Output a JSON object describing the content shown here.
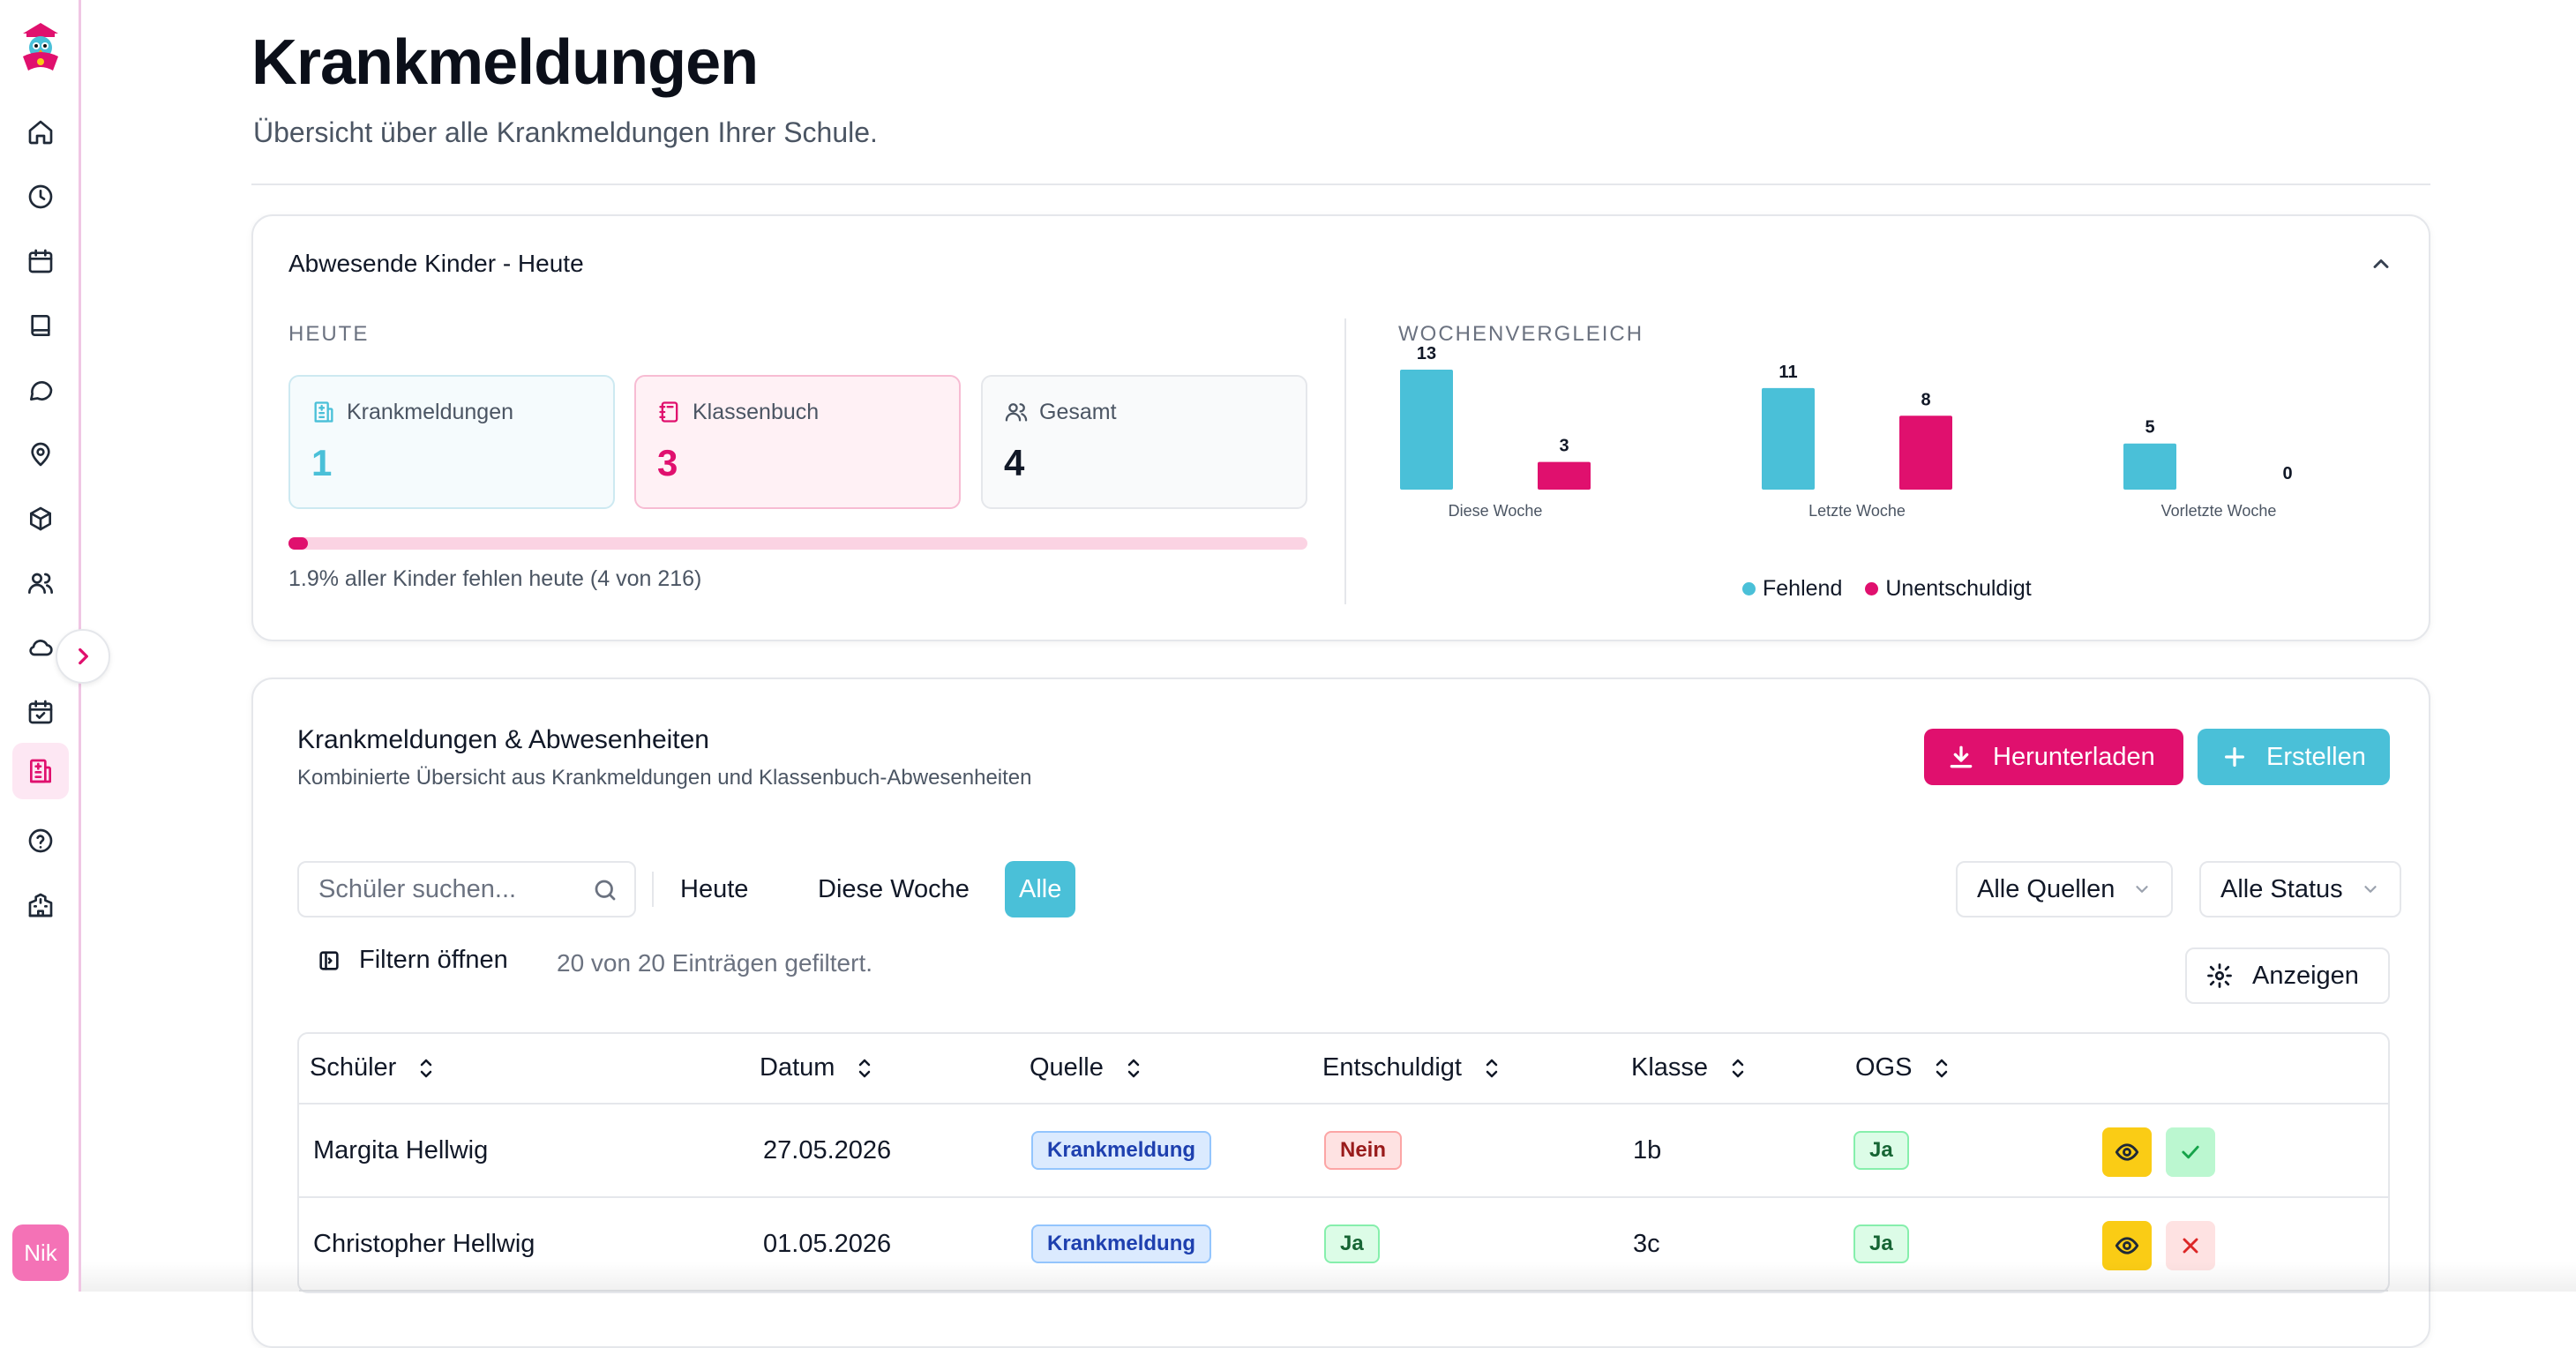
{
  "header": {
    "title": "Krankmeldungen",
    "subtitle": "Übersicht über alle Krankmeldungen Ihrer Schule."
  },
  "sidebar": {
    "icons": [
      "home-icon",
      "clock-icon",
      "calendar-icon",
      "book-icon",
      "chat-icon",
      "location-icon",
      "package-icon",
      "users-icon",
      "cloud-icon",
      "calendar-check-icon",
      "hospital-icon",
      "help-icon",
      "school-icon"
    ],
    "avatar": "Nik"
  },
  "overview": {
    "title": "Abwesende Kinder - Heute",
    "today_label": "HEUTE",
    "week_label": "WOCHENVERGLEICH",
    "stats": [
      {
        "label": "Krankmeldungen",
        "value": "1",
        "icon": "hospital-icon"
      },
      {
        "label": "Klassenbuch",
        "value": "3",
        "icon": "notebook-icon"
      },
      {
        "label": "Gesamt",
        "value": "4",
        "icon": "users-icon"
      }
    ],
    "progress_fraction": 0.019,
    "progress_text": "1.9% aller Kinder fehlen heute (4 von 216)"
  },
  "chart_data": {
    "type": "bar",
    "categories": [
      "Diese Woche",
      "Letzte Woche",
      "Vorletzte Woche"
    ],
    "series": [
      {
        "name": "Fehlend",
        "values": [
          13,
          11,
          5
        ],
        "color": "#4ac0d8"
      },
      {
        "name": "Unentschuldigt",
        "values": [
          3,
          8,
          0
        ],
        "color": "#e0106e"
      }
    ],
    "ylim": [
      0,
      13
    ],
    "grid": false,
    "legend": "bottom-center"
  },
  "list": {
    "title": "Krankmeldungen & Abwesenheiten",
    "subtitle": "Kombinierte Übersicht aus Krankmeldungen und Klassenbuch-Abwesenheiten",
    "download_label": "Herunterladen",
    "create_label": "Erstellen",
    "search_placeholder": "Schüler suchen...",
    "tabs": [
      "Heute",
      "Diese Woche",
      "Alle"
    ],
    "active_tab": "Alle",
    "source_filter": "Alle Quellen",
    "status_filter": "Alle Status",
    "filter_open_label": "Filtern öffnen",
    "filter_info": "20 von 20 Einträgen gefiltert.",
    "show_label": "Anzeigen",
    "columns": [
      "Schüler",
      "Datum",
      "Quelle",
      "Entschuldigt",
      "Klasse",
      "OGS"
    ],
    "rows": [
      {
        "student": "Margita Hellwig",
        "date": "27.05.2026",
        "source": "Krankmeldung",
        "excused": "Nein",
        "class": "1b",
        "ogs": "Ja"
      },
      {
        "student": "Christopher Hellwig",
        "date": "01.05.2026",
        "source": "Krankmeldung",
        "excused": "Ja",
        "class": "3c",
        "ogs": "Ja"
      }
    ]
  },
  "colors": {
    "accent_pink": "#e0106e",
    "accent_teal": "#4ac0d8"
  }
}
